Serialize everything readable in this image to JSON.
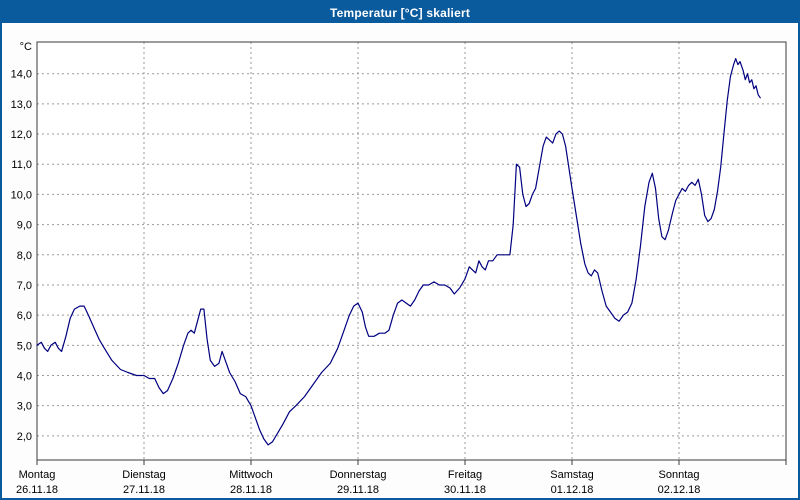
{
  "window": {
    "title": "Temperatur [°C] skaliert"
  },
  "colors": {
    "titlebar": "#0a5a9e",
    "frame": "#0a5a9e",
    "line": "#000080",
    "grid": "#9a9a9a",
    "plot_border": "#3a3a3a",
    "plot_bg": "#ffffff",
    "text": "#000000"
  },
  "chart_data": {
    "type": "line",
    "title": "Temperatur [°C] skaliert",
    "y_unit_label": "°C",
    "ylabel": "",
    "xlabel": "",
    "ylim": [
      1.2,
      15.05
    ],
    "xlim_days": [
      0,
      7
    ],
    "grid": true,
    "y_ticks": [
      2,
      3,
      4,
      5,
      6,
      7,
      8,
      9,
      10,
      11,
      12,
      13,
      14
    ],
    "y_tick_labels": [
      "2,0",
      "3,0",
      "4,0",
      "5,0",
      "6,0",
      "7,0",
      "8,0",
      "9,0",
      "10,0",
      "11,0",
      "12,0",
      "13,0",
      "14,0"
    ],
    "x_days": [
      {
        "name": "Montag",
        "date": "26.11.18"
      },
      {
        "name": "Dienstag",
        "date": "27.11.18"
      },
      {
        "name": "Mittwoch",
        "date": "28.11.18"
      },
      {
        "name": "Donnerstag",
        "date": "29.11.18"
      },
      {
        "name": "Freitag",
        "date": "30.11.18"
      },
      {
        "name": "Samstag",
        "date": "01.12.18"
      },
      {
        "name": "Sonntag",
        "date": "02.12.18"
      }
    ],
    "series": [
      {
        "name": "Temperatur",
        "points": [
          [
            0.0,
            5.0
          ],
          [
            0.04,
            5.1
          ],
          [
            0.07,
            4.9
          ],
          [
            0.1,
            4.8
          ],
          [
            0.13,
            5.0
          ],
          [
            0.17,
            5.1
          ],
          [
            0.2,
            4.9
          ],
          [
            0.23,
            4.8
          ],
          [
            0.27,
            5.3
          ],
          [
            0.31,
            5.9
          ],
          [
            0.35,
            6.2
          ],
          [
            0.4,
            6.3
          ],
          [
            0.44,
            6.3
          ],
          [
            0.48,
            6.0
          ],
          [
            0.53,
            5.6
          ],
          [
            0.58,
            5.2
          ],
          [
            0.63,
            4.9
          ],
          [
            0.7,
            4.5
          ],
          [
            0.78,
            4.2
          ],
          [
            0.85,
            4.1
          ],
          [
            0.93,
            4.0
          ],
          [
            1.0,
            4.0
          ],
          [
            1.05,
            3.9
          ],
          [
            1.1,
            3.9
          ],
          [
            1.14,
            3.6
          ],
          [
            1.18,
            3.4
          ],
          [
            1.22,
            3.5
          ],
          [
            1.27,
            3.9
          ],
          [
            1.32,
            4.4
          ],
          [
            1.37,
            5.0
          ],
          [
            1.41,
            5.4
          ],
          [
            1.44,
            5.5
          ],
          [
            1.47,
            5.4
          ],
          [
            1.5,
            5.8
          ],
          [
            1.53,
            6.2
          ],
          [
            1.56,
            6.2
          ],
          [
            1.59,
            5.2
          ],
          [
            1.62,
            4.5
          ],
          [
            1.66,
            4.3
          ],
          [
            1.7,
            4.4
          ],
          [
            1.73,
            4.8
          ],
          [
            1.76,
            4.5
          ],
          [
            1.8,
            4.1
          ],
          [
            1.85,
            3.8
          ],
          [
            1.9,
            3.4
          ],
          [
            1.95,
            3.3
          ],
          [
            2.0,
            3.0
          ],
          [
            2.04,
            2.6
          ],
          [
            2.08,
            2.2
          ],
          [
            2.12,
            1.9
          ],
          [
            2.16,
            1.7
          ],
          [
            2.2,
            1.8
          ],
          [
            2.25,
            2.1
          ],
          [
            2.3,
            2.4
          ],
          [
            2.36,
            2.8
          ],
          [
            2.42,
            3.0
          ],
          [
            2.5,
            3.3
          ],
          [
            2.58,
            3.7
          ],
          [
            2.66,
            4.1
          ],
          [
            2.74,
            4.4
          ],
          [
            2.81,
            4.9
          ],
          [
            2.87,
            5.5
          ],
          [
            2.92,
            6.0
          ],
          [
            2.96,
            6.3
          ],
          [
            3.0,
            6.4
          ],
          [
            3.04,
            6.1
          ],
          [
            3.07,
            5.6
          ],
          [
            3.1,
            5.3
          ],
          [
            3.15,
            5.3
          ],
          [
            3.2,
            5.4
          ],
          [
            3.25,
            5.4
          ],
          [
            3.29,
            5.5
          ],
          [
            3.33,
            6.0
          ],
          [
            3.37,
            6.4
          ],
          [
            3.41,
            6.5
          ],
          [
            3.45,
            6.4
          ],
          [
            3.49,
            6.3
          ],
          [
            3.53,
            6.5
          ],
          [
            3.57,
            6.8
          ],
          [
            3.61,
            7.0
          ],
          [
            3.66,
            7.0
          ],
          [
            3.71,
            7.1
          ],
          [
            3.76,
            7.0
          ],
          [
            3.81,
            7.0
          ],
          [
            3.86,
            6.9
          ],
          [
            3.9,
            6.7
          ],
          [
            3.95,
            6.9
          ],
          [
            4.0,
            7.2
          ],
          [
            4.04,
            7.6
          ],
          [
            4.07,
            7.5
          ],
          [
            4.1,
            7.4
          ],
          [
            4.13,
            7.8
          ],
          [
            4.16,
            7.6
          ],
          [
            4.19,
            7.5
          ],
          [
            4.22,
            7.8
          ],
          [
            4.26,
            7.8
          ],
          [
            4.3,
            8.0
          ],
          [
            4.34,
            8.0
          ],
          [
            4.38,
            8.0
          ],
          [
            4.42,
            8.0
          ],
          [
            4.45,
            9.0
          ],
          [
            4.48,
            11.0
          ],
          [
            4.51,
            10.9
          ],
          [
            4.54,
            10.0
          ],
          [
            4.57,
            9.6
          ],
          [
            4.6,
            9.7
          ],
          [
            4.63,
            10.0
          ],
          [
            4.66,
            10.2
          ],
          [
            4.7,
            11.0
          ],
          [
            4.73,
            11.6
          ],
          [
            4.76,
            11.9
          ],
          [
            4.79,
            11.8
          ],
          [
            4.82,
            11.7
          ],
          [
            4.85,
            12.0
          ],
          [
            4.88,
            12.1
          ],
          [
            4.91,
            12.0
          ],
          [
            4.94,
            11.6
          ],
          [
            4.97,
            10.9
          ],
          [
            5.0,
            10.2
          ],
          [
            5.04,
            9.3
          ],
          [
            5.08,
            8.4
          ],
          [
            5.12,
            7.7
          ],
          [
            5.15,
            7.4
          ],
          [
            5.18,
            7.3
          ],
          [
            5.21,
            7.5
          ],
          [
            5.24,
            7.4
          ],
          [
            5.28,
            6.8
          ],
          [
            5.32,
            6.3
          ],
          [
            5.36,
            6.1
          ],
          [
            5.4,
            5.9
          ],
          [
            5.44,
            5.8
          ],
          [
            5.48,
            6.0
          ],
          [
            5.52,
            6.1
          ],
          [
            5.56,
            6.4
          ],
          [
            5.6,
            7.2
          ],
          [
            5.64,
            8.3
          ],
          [
            5.68,
            9.6
          ],
          [
            5.72,
            10.4
          ],
          [
            5.75,
            10.7
          ],
          [
            5.78,
            10.2
          ],
          [
            5.81,
            9.2
          ],
          [
            5.84,
            8.6
          ],
          [
            5.87,
            8.5
          ],
          [
            5.9,
            8.8
          ],
          [
            5.94,
            9.4
          ],
          [
            5.97,
            9.8
          ],
          [
            6.0,
            10.0
          ],
          [
            6.03,
            10.2
          ],
          [
            6.06,
            10.1
          ],
          [
            6.09,
            10.3
          ],
          [
            6.12,
            10.4
          ],
          [
            6.15,
            10.3
          ],
          [
            6.18,
            10.5
          ],
          [
            6.21,
            10.0
          ],
          [
            6.24,
            9.3
          ],
          [
            6.27,
            9.1
          ],
          [
            6.3,
            9.2
          ],
          [
            6.33,
            9.5
          ],
          [
            6.36,
            10.1
          ],
          [
            6.39,
            10.9
          ],
          [
            6.42,
            12.0
          ],
          [
            6.45,
            13.1
          ],
          [
            6.48,
            13.9
          ],
          [
            6.51,
            14.3
          ],
          [
            6.53,
            14.5
          ],
          [
            6.55,
            14.3
          ],
          [
            6.57,
            14.4
          ],
          [
            6.6,
            14.1
          ],
          [
            6.62,
            13.8
          ],
          [
            6.64,
            14.0
          ],
          [
            6.66,
            13.7
          ],
          [
            6.68,
            13.8
          ],
          [
            6.7,
            13.5
          ],
          [
            6.72,
            13.6
          ],
          [
            6.74,
            13.3
          ],
          [
            6.76,
            13.2
          ]
        ]
      }
    ]
  }
}
